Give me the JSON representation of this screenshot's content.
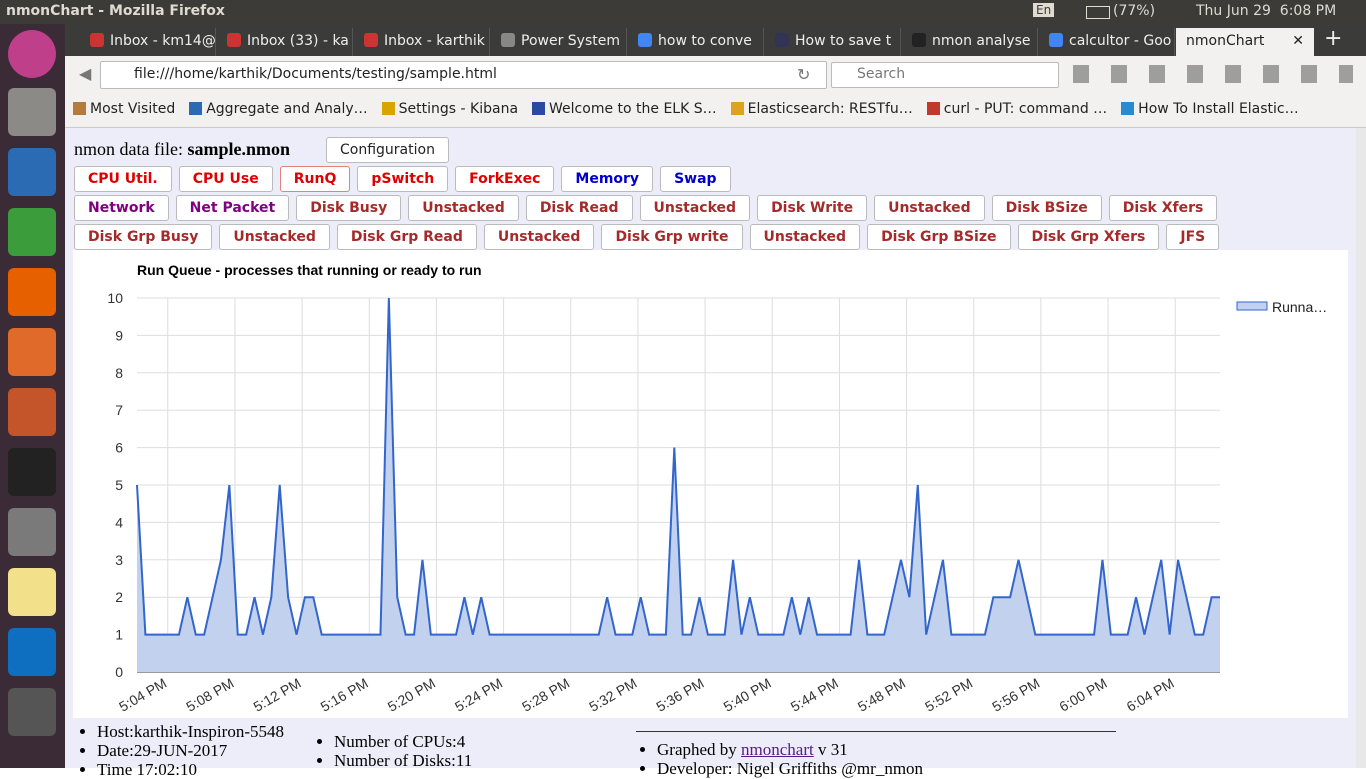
{
  "window": {
    "title": "nmonChart - Mozilla Firefox",
    "keyboard": "En",
    "battery": "(77%)",
    "clock": "Thu Jun 29  6:08 PM"
  },
  "tabs": [
    "Inbox - km14@",
    "Inbox (33) - ka",
    "Inbox - karthik",
    "Power System",
    "how to conve",
    "How to save t",
    "nmon analyse",
    "calcultor - Goo"
  ],
  "active_tab": "nmonChart",
  "url": "file:///home/karthik/Documents/testing/sample.html",
  "search_placeholder": "Search",
  "bookmarks": [
    "Most Visited",
    "Aggregate and Analy…",
    "Settings - Kibana",
    "Welcome to the ELK S…",
    "Elasticsearch: RESTfu…",
    "curl - PUT: command …",
    "How To Install Elastic…"
  ],
  "page": {
    "file_label": "nmon data file:",
    "file_name": "sample.nmon",
    "config_button": "Configuration",
    "button_rows": [
      [
        {
          "label": "CPU Util.",
          "color": "#e00000"
        },
        {
          "label": "CPU Use",
          "color": "#e00000"
        },
        {
          "label": "RunQ",
          "color": "#e00000",
          "selected": true
        },
        {
          "label": "pSwitch",
          "color": "#e00000"
        },
        {
          "label": "ForkExec",
          "color": "#e00000"
        },
        {
          "label": "Memory",
          "color": "#0000cc"
        },
        {
          "label": "Swap",
          "color": "#0000cc"
        }
      ],
      [
        {
          "label": "Network",
          "color": "#800080"
        },
        {
          "label": "Net Packet",
          "color": "#800080"
        },
        {
          "label": "Disk Busy",
          "color": "#a52a2a"
        },
        {
          "label": "Unstacked",
          "color": "#a52a2a"
        },
        {
          "label": "Disk Read",
          "color": "#a52a2a"
        },
        {
          "label": "Unstacked",
          "color": "#a52a2a"
        },
        {
          "label": "Disk Write",
          "color": "#a52a2a"
        },
        {
          "label": "Unstacked",
          "color": "#a52a2a"
        },
        {
          "label": "Disk BSize",
          "color": "#a52a2a"
        },
        {
          "label": "Disk Xfers",
          "color": "#a52a2a"
        }
      ],
      [
        {
          "label": "Disk Grp Busy",
          "color": "#a52a2a"
        },
        {
          "label": "Unstacked",
          "color": "#a52a2a"
        },
        {
          "label": "Disk Grp Read",
          "color": "#a52a2a"
        },
        {
          "label": "Unstacked",
          "color": "#a52a2a"
        },
        {
          "label": "Disk Grp write",
          "color": "#a52a2a"
        },
        {
          "label": "Unstacked",
          "color": "#a52a2a"
        },
        {
          "label": "Disk Grp BSize",
          "color": "#a52a2a"
        },
        {
          "label": "Disk Grp Xfers",
          "color": "#a52a2a"
        },
        {
          "label": "JFS",
          "color": "#a52a2a"
        }
      ]
    ],
    "footer": {
      "col1": [
        "Host:karthik-Inspiron-5548",
        "Date:29-JUN-2017",
        "Time 17:02:10"
      ],
      "col2": [
        "Number of CPUs:4",
        "Number of Disks:11"
      ],
      "graphed_prefix": "Graphed by",
      "graphed_link": "nmonchart",
      "graphed_suffix": "v 31",
      "developer": "Developer: Nigel Griffiths @mr_nmon"
    }
  },
  "chart_data": {
    "type": "area",
    "title": "Run Queue - processes that running or ready to run",
    "x": [
      "17:02:10",
      "17:02:40",
      "17:03:10",
      "17:03:40",
      "17:04:10",
      "17:04:40",
      "17:05:10",
      "17:05:40",
      "17:06:10",
      "17:06:40",
      "17:07:10",
      "17:07:40",
      "17:08:10",
      "17:08:40",
      "17:09:10",
      "17:09:40",
      "17:10:10",
      "17:10:40",
      "17:11:10",
      "17:11:40",
      "17:12:10",
      "17:12:40",
      "17:13:10",
      "17:13:40",
      "17:14:10",
      "17:14:40",
      "17:15:10",
      "17:15:40",
      "17:16:10",
      "17:16:40",
      "17:17:10",
      "17:17:40",
      "17:18:10",
      "17:18:40",
      "17:19:10",
      "17:19:40",
      "17:20:10",
      "17:20:40",
      "17:21:10",
      "17:21:40",
      "17:22:10",
      "17:22:40",
      "17:23:10",
      "17:23:40",
      "17:24:10",
      "17:24:40",
      "17:25:10",
      "17:25:40",
      "17:26:10",
      "17:26:40",
      "17:27:10",
      "17:27:40",
      "17:28:10",
      "17:28:40",
      "17:29:10",
      "17:29:40",
      "17:30:10",
      "17:30:40",
      "17:31:10",
      "17:31:40",
      "17:32:10",
      "17:32:40",
      "17:33:10",
      "17:33:40",
      "17:34:10",
      "17:34:40",
      "17:35:10",
      "17:35:40",
      "17:36:10",
      "17:36:40",
      "17:37:10",
      "17:37:40",
      "17:38:10",
      "17:38:40",
      "17:39:10",
      "17:39:40",
      "17:40:10",
      "17:40:40",
      "17:41:10",
      "17:41:40",
      "17:42:10",
      "17:42:40",
      "17:43:10",
      "17:43:40",
      "17:44:10",
      "17:44:40",
      "17:45:10",
      "17:45:40",
      "17:46:10",
      "17:46:40",
      "17:47:10",
      "17:47:40",
      "17:48:10",
      "17:48:40",
      "17:49:10",
      "17:49:40",
      "17:50:10",
      "17:50:40",
      "17:51:10",
      "17:51:40",
      "17:52:10",
      "17:52:40",
      "17:53:10",
      "17:53:40",
      "17:54:10",
      "17:54:40",
      "17:55:10",
      "17:55:40",
      "17:56:10",
      "17:56:40",
      "17:57:10",
      "17:57:40",
      "17:58:10",
      "17:58:40",
      "17:59:10",
      "17:59:40",
      "18:00:10",
      "18:00:40",
      "18:01:10",
      "18:01:40",
      "18:02:10",
      "18:02:40",
      "18:03:10",
      "18:03:40",
      "18:04:10",
      "18:04:40",
      "18:05:10",
      "18:05:40",
      "18:06:10",
      "18:06:40"
    ],
    "series": [
      {
        "name": "Runna…",
        "color": "#3366cc",
        "fill": "#c2d1ee",
        "values": [
          5,
          1,
          1,
          1,
          1,
          1,
          2,
          1,
          1,
          2,
          3,
          5,
          1,
          1,
          2,
          1,
          2,
          5,
          2,
          1,
          2,
          2,
          1,
          1,
          1,
          1,
          1,
          1,
          1,
          1,
          10,
          2,
          1,
          1,
          3,
          1,
          1,
          1,
          1,
          2,
          1,
          2,
          1,
          1,
          1,
          1,
          1,
          1,
          1,
          1,
          1,
          1,
          1,
          1,
          1,
          1,
          2,
          1,
          1,
          1,
          2,
          1,
          1,
          1,
          6,
          1,
          1,
          2,
          1,
          1,
          1,
          3,
          1,
          2,
          1,
          1,
          1,
          1,
          2,
          1,
          2,
          1,
          1,
          1,
          1,
          1,
          3,
          1,
          1,
          1,
          2,
          3,
          2,
          5,
          1,
          2,
          3,
          1,
          1,
          1,
          1,
          1,
          2,
          2,
          2,
          3,
          2,
          1,
          1,
          1,
          1,
          1,
          1,
          1,
          1,
          3,
          1,
          1,
          1,
          2,
          1,
          2,
          3,
          1,
          3,
          2,
          1,
          1,
          2,
          2
        ]
      }
    ],
    "xlim": [
      "17:02:10",
      "18:06:40"
    ],
    "xticks": [
      {
        "value": "17:04:00",
        "label": "5:04 PM"
      },
      {
        "value": "17:08:00",
        "label": "5:08 PM"
      },
      {
        "value": "17:12:00",
        "label": "5:12 PM"
      },
      {
        "value": "17:16:00",
        "label": "5:16 PM"
      },
      {
        "value": "17:20:00",
        "label": "5:20 PM"
      },
      {
        "value": "17:24:00",
        "label": "5:24 PM"
      },
      {
        "value": "17:28:00",
        "label": "5:28 PM"
      },
      {
        "value": "17:32:00",
        "label": "5:32 PM"
      },
      {
        "value": "17:36:00",
        "label": "5:36 PM"
      },
      {
        "value": "17:40:00",
        "label": "5:40 PM"
      },
      {
        "value": "17:44:00",
        "label": "5:44 PM"
      },
      {
        "value": "17:48:00",
        "label": "5:48 PM"
      },
      {
        "value": "17:52:00",
        "label": "5:52 PM"
      },
      {
        "value": "17:56:00",
        "label": "5:56 PM"
      },
      {
        "value": "18:00:00",
        "label": "6:00 PM"
      },
      {
        "value": "18:04:00",
        "label": "6:04 PM"
      }
    ],
    "ylim": [
      0,
      10
    ],
    "yticks": [
      0,
      1,
      2,
      3,
      4,
      5,
      6,
      7,
      8,
      9,
      10
    ],
    "grid": true,
    "legend": "right"
  }
}
